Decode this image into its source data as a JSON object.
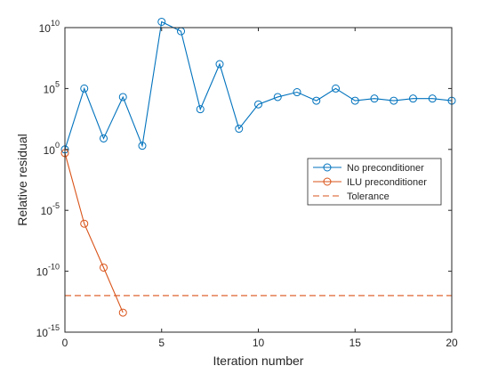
{
  "chart_data": {
    "type": "line",
    "title": "",
    "xlabel": "Iteration number",
    "ylabel": "Relative residual",
    "xlim": [
      0,
      20
    ],
    "ylim_log10": [
      -15,
      10
    ],
    "yscale": "log",
    "grid": false,
    "legend_position": "right",
    "x_ticks": [
      0,
      5,
      10,
      15,
      20
    ],
    "y_tick_exponents": [
      -15,
      -10,
      -5,
      0,
      5,
      10
    ],
    "y_tick_base": "10",
    "series": [
      {
        "name": "No preconditioner",
        "color": "#0072BD",
        "line_style": "solid",
        "marker": "circle",
        "x": [
          0,
          1,
          2,
          3,
          4,
          5,
          6,
          7,
          8,
          9,
          10,
          11,
          12,
          13,
          14,
          15,
          16,
          17,
          18,
          19,
          20
        ],
        "y": [
          1,
          100000,
          8,
          20000,
          2,
          30000000000,
          5000000000,
          2000,
          10000000,
          50,
          5000,
          20000,
          50000,
          10000,
          100000,
          10000,
          15000,
          10000,
          15000,
          15000,
          10000
        ]
      },
      {
        "name": "ILU preconditioner",
        "color": "#D95319",
        "line_style": "solid",
        "marker": "circle",
        "x": [
          0,
          1,
          2,
          3
        ],
        "y": [
          0.5,
          8e-07,
          2e-10,
          4e-14
        ]
      },
      {
        "name": "Tolerance",
        "color": "#D95319",
        "line_style": "dashed",
        "marker": "none",
        "x": [
          0,
          20
        ],
        "y": [
          1e-12,
          1e-12
        ]
      }
    ]
  }
}
